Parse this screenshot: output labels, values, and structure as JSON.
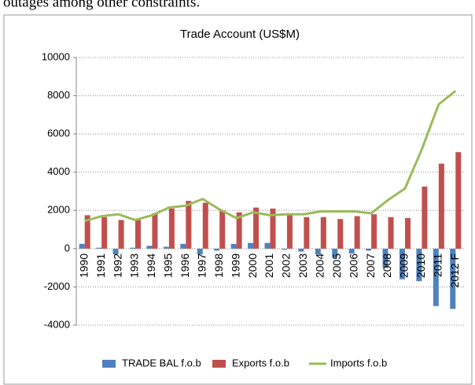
{
  "page_text": "outages among other constraints.",
  "chart_data": {
    "type": "bar-line",
    "title": "Trade Account (US$M)",
    "categories": [
      "1990",
      "1991",
      "1992",
      "1993",
      "1994",
      "1995",
      "1996",
      "1997",
      "1998",
      "1999",
      "2000",
      "2001",
      "2002",
      "2003",
      "2004",
      "2005",
      "2006",
      "2007",
      "2008",
      "2009",
      "2010",
      "2011",
      "2012 F"
    ],
    "series": [
      {
        "name": "TRADE BAL f.o.b",
        "type": "bar",
        "color": "#4f81bd",
        "values": [
          250,
          50,
          -300,
          50,
          150,
          100,
          250,
          -300,
          -100,
          250,
          300,
          300,
          -50,
          -150,
          -300,
          -450,
          -250,
          -100,
          -1000,
          -1600,
          -1700,
          -3000,
          -3150
        ]
      },
      {
        "name": "Exports f.o.b",
        "type": "bar",
        "color": "#c0504d",
        "values": [
          1750,
          1650,
          1500,
          1500,
          1850,
          2100,
          2500,
          2400,
          2000,
          1900,
          2150,
          2100,
          1800,
          1650,
          1650,
          1550,
          1700,
          1800,
          1650,
          1600,
          3250,
          4450,
          5050
        ]
      },
      {
        "name": "Imports f.o.b",
        "type": "line",
        "color": "#9bbb59",
        "values": [
          1450,
          1700,
          1800,
          1500,
          1750,
          2150,
          2250,
          2600,
          2050,
          1600,
          1900,
          1750,
          1800,
          1800,
          1950,
          1950,
          1950,
          1850,
          2550,
          3150,
          5200,
          7550,
          8250
        ]
      }
    ],
    "ylim": [
      -4000,
      10000
    ],
    "yticks": [
      -4000,
      -2000,
      0,
      2000,
      4000,
      6000,
      8000,
      10000
    ],
    "grid": true,
    "legend": "bottom"
  }
}
